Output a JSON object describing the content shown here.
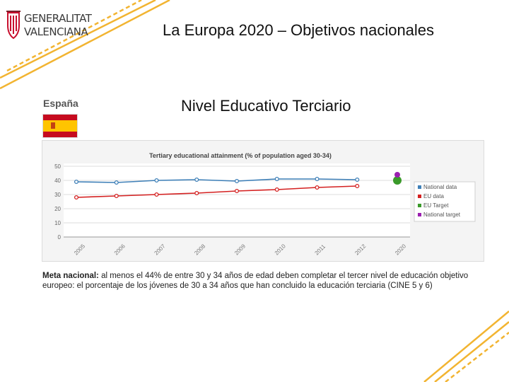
{
  "header": {
    "logo_line1": "GENERALITAT",
    "logo_line2": "VALENCIANA",
    "title": "La Europa 2020 – Objetivos nacionales"
  },
  "country": {
    "name": "España"
  },
  "subtitle": "Nivel Educativo Terciario",
  "colors": {
    "national": "#3f80b8",
    "eu": "#d42020",
    "eu_target": "#3a9a2a",
    "national_target": "#9b1fb0",
    "accent_lines": "#f2b431"
  },
  "chart_data": {
    "type": "line",
    "title": "Tertiary educational attainment (% of population aged 30-34)",
    "xlabel": "",
    "ylabel": "",
    "ylim": [
      0,
      50
    ],
    "yticks": [
      "0",
      "10",
      "20",
      "30",
      "40",
      "50"
    ],
    "categories": [
      "2005",
      "2006",
      "2007",
      "2008",
      "2009",
      "2010",
      "2011",
      "2012",
      "2020"
    ],
    "series": [
      {
        "name": "National data",
        "values": [
          39,
          38.5,
          40,
          40.5,
          39.5,
          41,
          41,
          40.5,
          null
        ]
      },
      {
        "name": "EU data",
        "values": [
          28,
          29,
          30,
          31,
          32.5,
          33.5,
          35,
          36,
          null
        ]
      },
      {
        "name": "EU Target",
        "values": [
          null,
          null,
          null,
          null,
          null,
          null,
          null,
          null,
          40
        ]
      },
      {
        "name": "National target",
        "values": [
          null,
          null,
          null,
          null,
          null,
          null,
          null,
          null,
          44
        ]
      }
    ],
    "legend_position": "right",
    "grid": "horizontal"
  },
  "note": {
    "label": "Meta nacional:",
    "text": " al menos el 44% de entre 30 y 34 años de edad deben completar el tercer nivel de educación objetivo europeo: el porcentaje de los jóvenes de 30 a 34 años que han concluido la educación terciaria (CINE 5 y 6)"
  }
}
